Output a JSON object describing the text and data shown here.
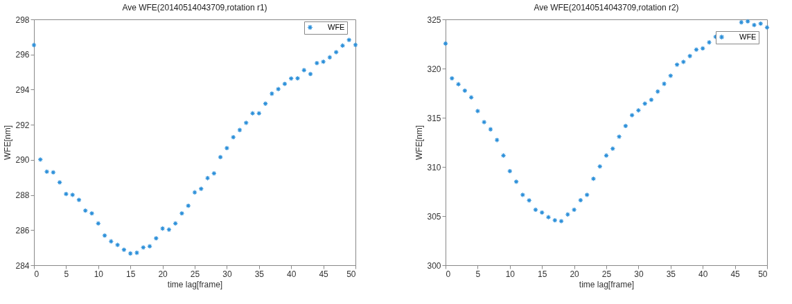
{
  "chart_data": [
    {
      "type": "scatter",
      "title": "Ave WFE(20140514043709,rotation r1)",
      "xlabel": "time lag[frame]",
      "ylabel": "WFE[nm]",
      "marker": "cross",
      "legend": "top right",
      "grid": false,
      "x": [
        0,
        1,
        2,
        3,
        4,
        5,
        6,
        7,
        8,
        9,
        10,
        11,
        12,
        13,
        14,
        15,
        16,
        17,
        18,
        19,
        20,
        21,
        22,
        23,
        24,
        25,
        26,
        27,
        28,
        29,
        30,
        31,
        32,
        33,
        34,
        35,
        36,
        37,
        38,
        39,
        40,
        41,
        42,
        43,
        44,
        45,
        46,
        47,
        48,
        49,
        50
      ],
      "series": [
        {
          "name": "WFE",
          "color": "#2b8fd9",
          "values": [
            296.54,
            290.02,
            289.33,
            289.29,
            288.72,
            288.06,
            288.01,
            287.72,
            287.11,
            286.95,
            286.38,
            285.69,
            285.36,
            285.16,
            284.88,
            284.67,
            284.71,
            285.01,
            285.08,
            285.53,
            286.09,
            286.03,
            286.38,
            286.95,
            287.39,
            288.15,
            288.35,
            288.96,
            289.23,
            290.16,
            290.67,
            291.29,
            291.7,
            292.11,
            292.65,
            292.65,
            293.2,
            293.77,
            294.03,
            294.33,
            294.63,
            294.64,
            295.11,
            294.89,
            295.51,
            295.59,
            295.84,
            296.13,
            296.51,
            296.83,
            296.55
          ]
        }
      ],
      "xlim": [
        0,
        50
      ],
      "xticks": [
        0,
        5,
        10,
        15,
        20,
        25,
        30,
        35,
        40,
        45,
        50
      ],
      "ylim": [
        284,
        298
      ],
      "yticks": [
        284,
        286,
        288,
        290,
        292,
        294,
        296,
        298
      ]
    },
    {
      "type": "scatter",
      "title": "Ave WFE(20140514043709,rotation r2)",
      "xlabel": "time lag[frame]",
      "ylabel": "WFE[nm]",
      "marker": "cross",
      "legend": "top right",
      "grid": false,
      "x": [
        0,
        1,
        2,
        3,
        4,
        5,
        6,
        7,
        8,
        9,
        10,
        11,
        12,
        13,
        14,
        15,
        16,
        17,
        18,
        19,
        20,
        21,
        22,
        23,
        24,
        25,
        26,
        27,
        28,
        29,
        30,
        31,
        32,
        33,
        34,
        35,
        36,
        37,
        38,
        39,
        40,
        41,
        42,
        43,
        44,
        45,
        46,
        47,
        48,
        49,
        50
      ],
      "series": [
        {
          "name": "WFE",
          "color": "#2b8fd9",
          "values": [
            322.55,
            319.0,
            318.41,
            317.75,
            317.07,
            315.68,
            314.55,
            313.82,
            312.73,
            311.16,
            309.57,
            308.5,
            307.16,
            306.59,
            305.64,
            305.36,
            304.89,
            304.57,
            304.48,
            305.16,
            305.64,
            306.61,
            307.16,
            308.8,
            310.05,
            311.16,
            311.86,
            313.07,
            314.16,
            315.25,
            315.75,
            316.43,
            316.82,
            317.66,
            318.45,
            319.27,
            320.39,
            320.68,
            321.27,
            321.93,
            322.05,
            322.66,
            323.23,
            null,
            null,
            null,
            324.7,
            324.8,
            324.43,
            324.57,
            324.18
          ]
        }
      ],
      "xlim": [
        0,
        50
      ],
      "xticks": [
        0,
        5,
        10,
        15,
        20,
        25,
        30,
        35,
        40,
        45,
        50
      ],
      "ylim": [
        300,
        325
      ],
      "yticks": [
        300,
        305,
        310,
        315,
        320,
        325
      ]
    }
  ]
}
